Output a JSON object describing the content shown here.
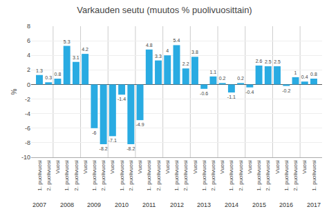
{
  "chart_data": {
    "type": "bar",
    "title": "Varkauden seutu (muutos % puolivuosittain)",
    "ylabel": "%",
    "categories": [
      "1. puolivuosi",
      "2. puolivuosi",
      "Vuosi",
      "1. puolivuosi",
      "2. puolivuosi",
      "Vuosi",
      "1. puolivuosi",
      "2. puolivuosi",
      "Vuosi",
      "1. puolivuosi",
      "2. puolivuosi",
      "Vuosi",
      "1. puolivuosi",
      "2. puolivuosi",
      "Vuosi",
      "1. puolivuosi",
      "2. puolivuosi",
      "Vuosi",
      "1. puolivuosi",
      "2. puolivuosi",
      "Vuosi",
      "1. puolivuosi",
      "2. puolivuosi",
      "Vuosi",
      "1. puolivuosi",
      "2. puolivuosi",
      "Vuosi",
      "1. puolivuosi",
      "2. puolivuosi",
      "Vuosi",
      "1. puolivuosi"
    ],
    "values": [
      1.3,
      0.3,
      0.8,
      5.3,
      3.1,
      4.2,
      -6.0,
      -8.2,
      -7.1,
      -1.4,
      -8.2,
      -4.9,
      4.8,
      3.3,
      4.0,
      5.4,
      2.2,
      3.8,
      -0.6,
      1.1,
      0.2,
      -1.1,
      0.2,
      -0.4,
      2.6,
      2.5,
      2.5,
      -0.2,
      1.0,
      0.4,
      0.8
    ],
    "color": "#29ABE2",
    "ylim": [
      -10,
      8
    ],
    "yticks": [
      -10,
      -8,
      -6,
      -4,
      -2,
      0,
      2,
      4,
      6,
      8
    ],
    "grid": true,
    "data_labels": true,
    "annotations": [
      {
        "text": "2007",
        "x": 1
      },
      {
        "text": "2008",
        "x": 4
      },
      {
        "text": "2009",
        "x": 7
      },
      {
        "text": "2010",
        "x": 10
      },
      {
        "text": "2011",
        "x": 13
      },
      {
        "text": "2012",
        "x": 16
      },
      {
        "text": "2013",
        "x": 19
      },
      {
        "text": "2014",
        "x": 22
      },
      {
        "text": "2015",
        "x": 25
      },
      {
        "text": "2016",
        "x": 28
      },
      {
        "text": "2017",
        "x": 31
      }
    ]
  }
}
